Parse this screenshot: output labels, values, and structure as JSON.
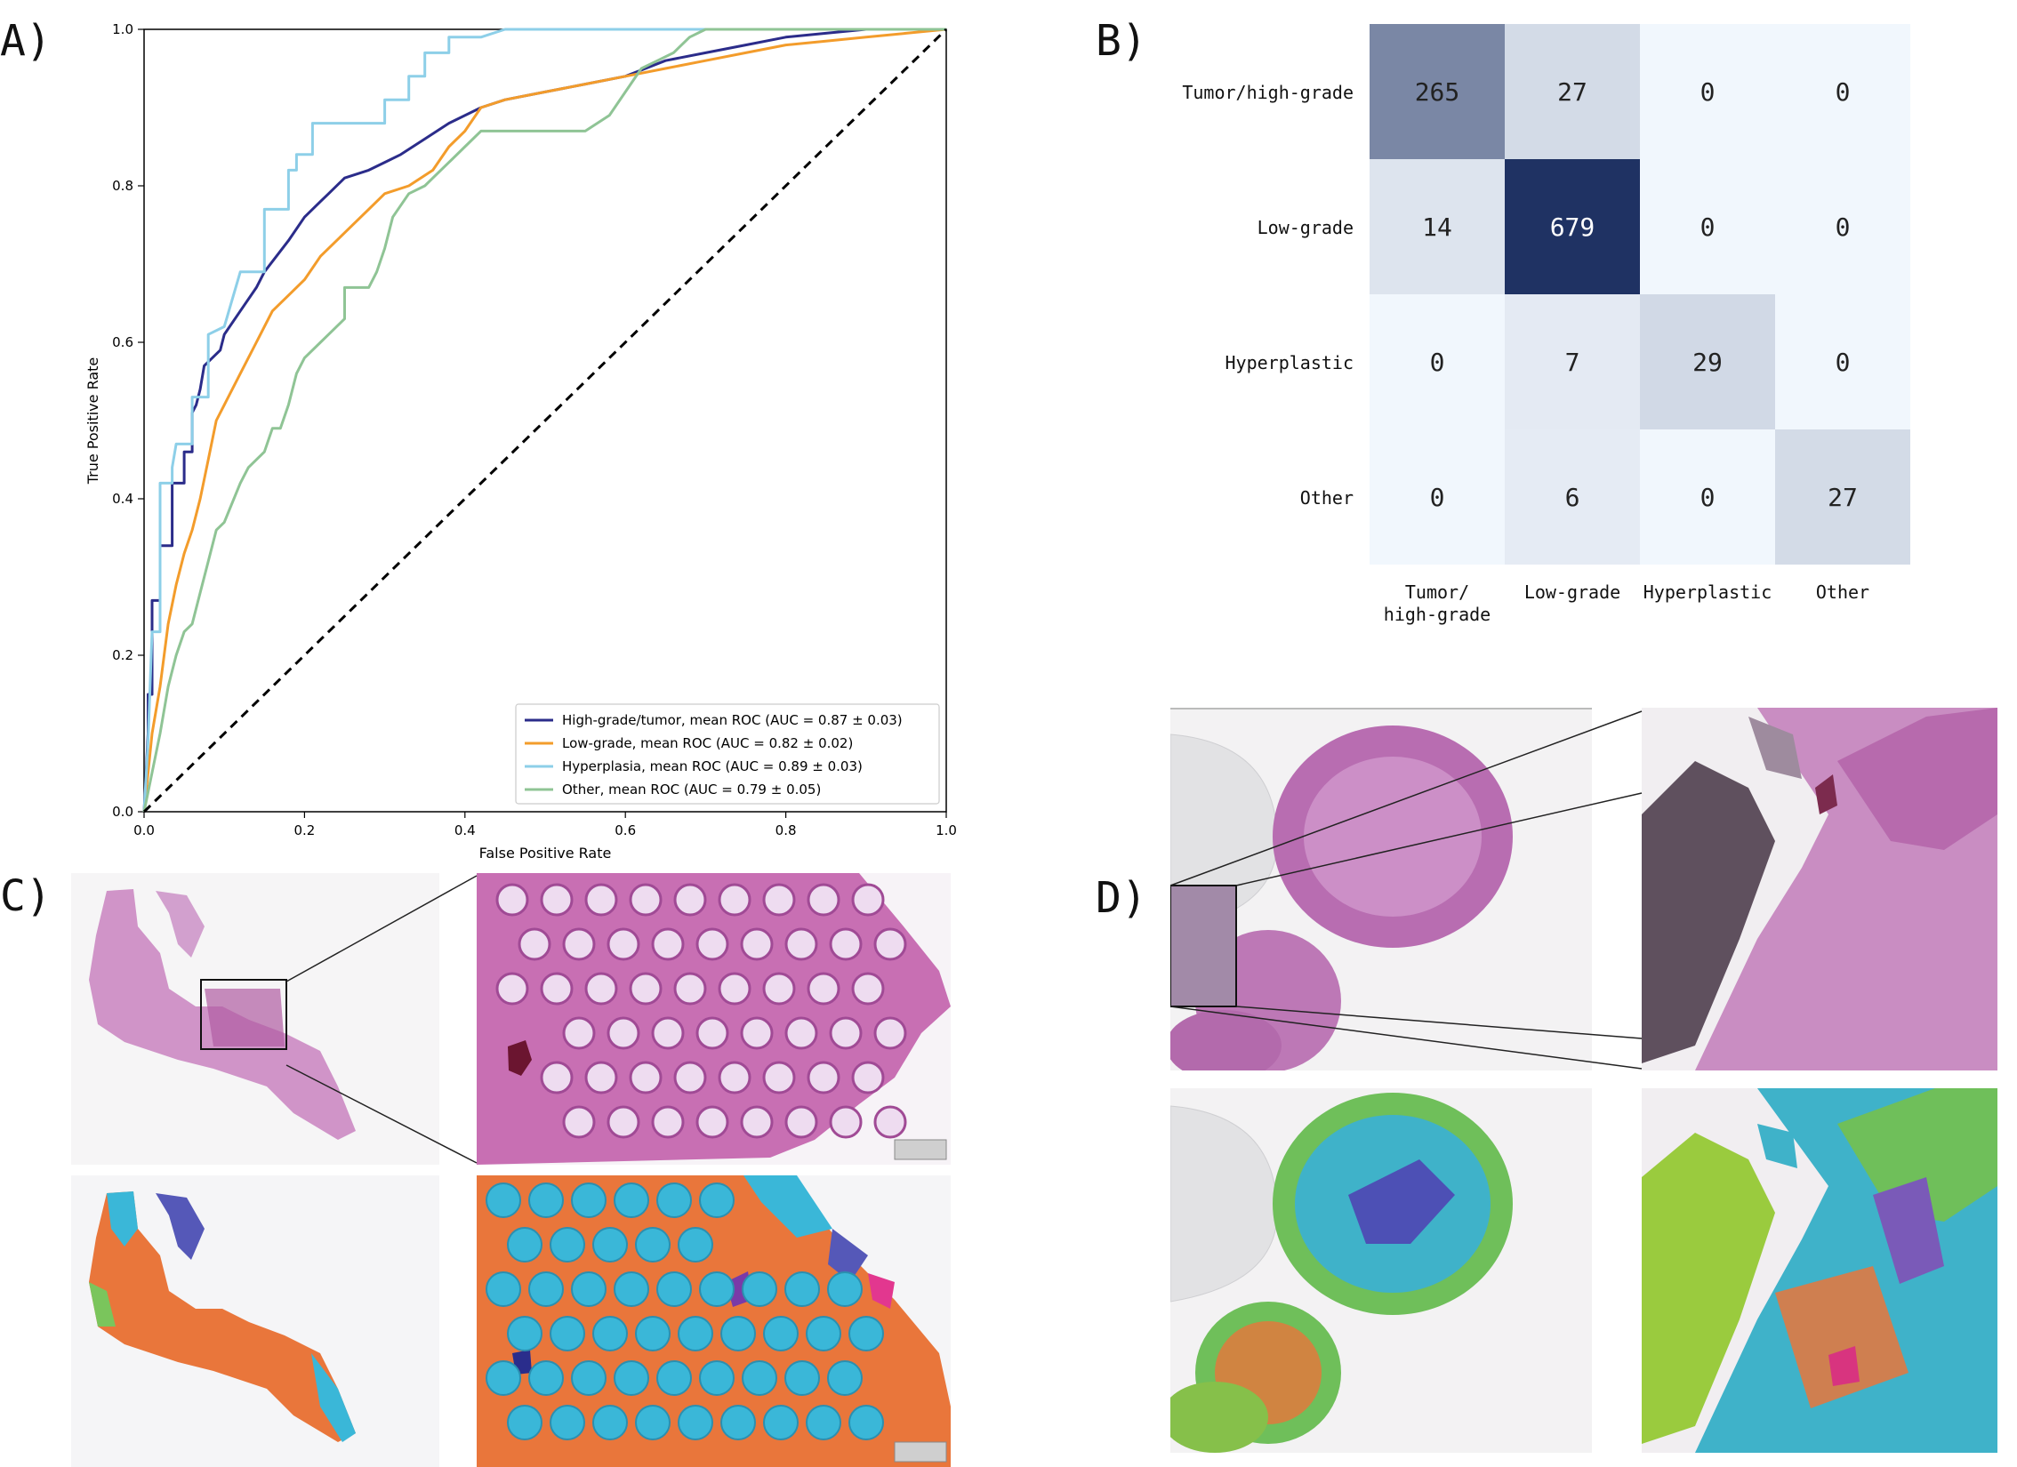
{
  "panels": {
    "a": "A)",
    "b": "B)",
    "c": "C)",
    "d": "D)"
  },
  "chart_data": [
    {
      "type": "line",
      "title": "",
      "xlabel": "False Positive Rate",
      "ylabel": "True Positive Rate",
      "xlim": [
        0,
        1
      ],
      "ylim": [
        0,
        1
      ],
      "xticks": [
        "0.0",
        "0.2",
        "0.4",
        "0.6",
        "0.8",
        "1.0"
      ],
      "yticks": [
        "0.0",
        "0.2",
        "0.4",
        "0.6",
        "0.8",
        "1.0"
      ],
      "legend_position": "bottom-right",
      "series": [
        {
          "name": "High-grade/tumor, mean ROC (AUC = 0.87 ± 0.03)",
          "color": "#2b2c8a",
          "x": [
            0,
            0.005,
            0.005,
            0.01,
            0.01,
            0.02,
            0.02,
            0.035,
            0.035,
            0.05,
            0.05,
            0.06,
            0.06,
            0.065,
            0.07,
            0.075,
            0.085,
            0.095,
            0.1,
            0.12,
            0.14,
            0.15,
            0.18,
            0.2,
            0.22,
            0.23,
            0.25,
            0.28,
            0.3,
            0.32,
            0.35,
            0.38,
            0.42,
            0.45,
            0.5,
            0.55,
            0.6,
            0.65,
            0.7,
            0.75,
            0.8,
            0.85,
            0.9,
            0.95,
            1.0
          ],
          "y": [
            0,
            0.1,
            0.15,
            0.15,
            0.27,
            0.27,
            0.34,
            0.34,
            0.42,
            0.42,
            0.46,
            0.46,
            0.51,
            0.52,
            0.54,
            0.57,
            0.58,
            0.59,
            0.61,
            0.64,
            0.67,
            0.69,
            0.73,
            0.76,
            0.78,
            0.79,
            0.81,
            0.82,
            0.83,
            0.84,
            0.86,
            0.88,
            0.9,
            0.91,
            0.92,
            0.93,
            0.94,
            0.96,
            0.97,
            0.98,
            0.99,
            0.995,
            1.0,
            1.0,
            1.0
          ]
        },
        {
          "name": "Low-grade, mean ROC (AUC = 0.82 ± 0.02)",
          "color": "#f39c2b",
          "x": [
            0,
            0.01,
            0.02,
            0.03,
            0.04,
            0.05,
            0.06,
            0.07,
            0.08,
            0.09,
            0.1,
            0.12,
            0.14,
            0.16,
            0.18,
            0.2,
            0.22,
            0.25,
            0.28,
            0.3,
            0.33,
            0.36,
            0.38,
            0.4,
            0.42,
            0.45,
            0.5,
            0.55,
            0.6,
            0.65,
            0.7,
            0.75,
            0.8,
            0.85,
            0.9,
            0.95,
            1.0
          ],
          "y": [
            0,
            0.1,
            0.16,
            0.24,
            0.29,
            0.33,
            0.36,
            0.4,
            0.45,
            0.5,
            0.52,
            0.56,
            0.6,
            0.64,
            0.66,
            0.68,
            0.71,
            0.74,
            0.77,
            0.79,
            0.8,
            0.82,
            0.85,
            0.87,
            0.9,
            0.91,
            0.92,
            0.93,
            0.94,
            0.95,
            0.96,
            0.97,
            0.98,
            0.985,
            0.99,
            0.995,
            1.0
          ]
        },
        {
          "name": "Hyperplasia, mean ROC (AUC = 0.89 ± 0.03)",
          "color": "#8dcfe8",
          "x": [
            0,
            0.005,
            0.01,
            0.02,
            0.02,
            0.035,
            0.035,
            0.04,
            0.06,
            0.06,
            0.08,
            0.08,
            0.1,
            0.12,
            0.15,
            0.15,
            0.18,
            0.18,
            0.19,
            0.19,
            0.21,
            0.21,
            0.25,
            0.25,
            0.3,
            0.3,
            0.33,
            0.33,
            0.35,
            0.35,
            0.38,
            0.38,
            0.42,
            0.45,
            0.6,
            0.8,
            1.0
          ],
          "y": [
            0,
            0.09,
            0.23,
            0.23,
            0.42,
            0.42,
            0.44,
            0.47,
            0.47,
            0.53,
            0.53,
            0.61,
            0.62,
            0.69,
            0.69,
            0.77,
            0.77,
            0.82,
            0.82,
            0.84,
            0.84,
            0.88,
            0.88,
            0.88,
            0.88,
            0.91,
            0.91,
            0.94,
            0.94,
            0.97,
            0.97,
            0.99,
            0.99,
            1.0,
            1.0,
            1.0,
            1.0
          ]
        },
        {
          "name": "Other, mean ROC (AUC = 0.79 ± 0.05)",
          "color": "#8fc495",
          "x": [
            0,
            0.02,
            0.03,
            0.04,
            0.05,
            0.06,
            0.07,
            0.08,
            0.09,
            0.1,
            0.12,
            0.13,
            0.15,
            0.16,
            0.17,
            0.18,
            0.19,
            0.2,
            0.22,
            0.25,
            0.25,
            0.28,
            0.29,
            0.3,
            0.31,
            0.33,
            0.35,
            0.36,
            0.38,
            0.4,
            0.42,
            0.45,
            0.5,
            0.55,
            0.58,
            0.6,
            0.62,
            0.64,
            0.66,
            0.68,
            0.7,
            0.75,
            0.8,
            0.9,
            1.0
          ],
          "y": [
            0,
            0.1,
            0.16,
            0.2,
            0.23,
            0.24,
            0.28,
            0.32,
            0.36,
            0.37,
            0.42,
            0.44,
            0.46,
            0.49,
            0.49,
            0.52,
            0.56,
            0.58,
            0.6,
            0.63,
            0.67,
            0.67,
            0.69,
            0.72,
            0.76,
            0.79,
            0.8,
            0.81,
            0.83,
            0.85,
            0.87,
            0.87,
            0.87,
            0.87,
            0.89,
            0.92,
            0.95,
            0.96,
            0.97,
            0.99,
            1.0,
            1.0,
            1.0,
            1.0,
            1.0
          ]
        },
        {
          "name": "chance",
          "color": "#000000",
          "dashed": true,
          "x": [
            0,
            1
          ],
          "y": [
            0,
            1
          ]
        }
      ]
    },
    {
      "type": "heatmap",
      "title": "",
      "row_labels": [
        "Tumor/high-grade",
        "Low-grade",
        "Hyperplastic",
        "Other"
      ],
      "col_labels": [
        [
          "Tumor/",
          "high-grade"
        ],
        [
          "Low-grade"
        ],
        [
          "Hyperplastic"
        ],
        [
          "Other"
        ]
      ],
      "values": [
        [
          265,
          27,
          0,
          0
        ],
        [
          14,
          679,
          0,
          0
        ],
        [
          0,
          7,
          29,
          0
        ],
        [
          0,
          6,
          0,
          27
        ]
      ],
      "vmin": 0,
      "vmax": 679,
      "color_low": "#f1f7fd",
      "color_high": "#1f3263"
    }
  ],
  "images": {
    "c_overview": "H&E whole-slide overview",
    "c_zoom": "H&E zoomed region",
    "c_seg_overview": "segmentation overlay overview",
    "c_seg_zoom": "segmentation overlay zoom",
    "d_overview": "H&E whole-slide overview",
    "d_zoom": "H&E zoomed region",
    "d_seg_overview": "segmentation overlay overview",
    "d_seg_zoom": "segmentation overlay zoom"
  }
}
